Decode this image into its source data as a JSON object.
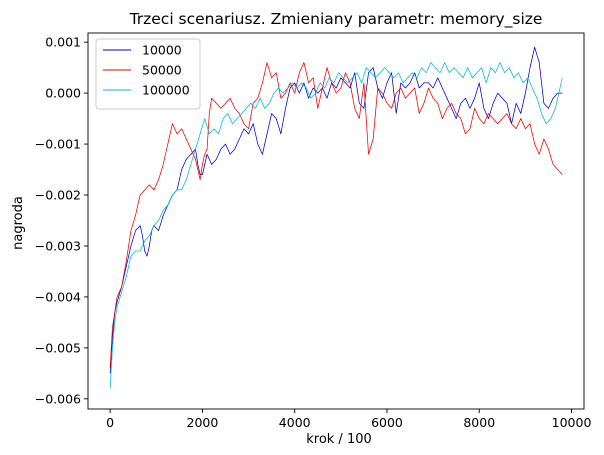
{
  "chart_data": {
    "type": "line",
    "title": "Trzeci scenariusz. Zmieniany parametr: memory_size",
    "xlabel": "krok / 100",
    "ylabel": "nagroda",
    "xlim": [
      -480,
      10270
    ],
    "ylim": [
      -0.0062,
      0.00118
    ],
    "xticks": [
      0,
      2000,
      4000,
      6000,
      8000,
      10000
    ],
    "xtick_labels": [
      "0",
      "2000",
      "4000",
      "6000",
      "8000",
      "10000"
    ],
    "yticks": [
      -0.006,
      -0.005,
      -0.004,
      -0.003,
      -0.002,
      -0.001,
      0.0,
      0.001
    ],
    "ytick_labels": [
      "−0.006",
      "−0.005",
      "−0.004",
      "−0.003",
      "−0.002",
      "−0.001",
      "0.000",
      "0.001"
    ],
    "grid": false,
    "legend_position": "top-left",
    "series": [
      {
        "name": "10000",
        "color": "#0000cc",
        "x": [
          0,
          50,
          100,
          150,
          250,
          350,
          450,
          550,
          650,
          700,
          750,
          800,
          850,
          900,
          950,
          1050,
          1150,
          1250,
          1350,
          1450,
          1550,
          1650,
          1750,
          1850,
          1900,
          1950,
          2000,
          2100,
          2200,
          2300,
          2400,
          2500,
          2600,
          2700,
          2800,
          2900,
          3000,
          3100,
          3200,
          3300,
          3400,
          3500,
          3600,
          3700,
          3800,
          3900,
          4000,
          4100,
          4200,
          4300,
          4400,
          4500,
          4600,
          4700,
          4800,
          4900,
          5000,
          5100,
          5200,
          5300,
          5400,
          5500,
          5600,
          5700,
          5800,
          5900,
          6000,
          6100,
          6200,
          6300,
          6400,
          6500,
          6600,
          6700,
          6800,
          6900,
          7000,
          7100,
          7200,
          7300,
          7400,
          7500,
          7600,
          7700,
          7800,
          7900,
          8000,
          8100,
          8200,
          8300,
          8400,
          8500,
          8600,
          8700,
          8800,
          8900,
          9000,
          9100,
          9200,
          9300,
          9400,
          9500,
          9600,
          9700,
          9800
        ],
        "y": [
          -0.0055,
          -0.0048,
          -0.0043,
          -0.0041,
          -0.0038,
          -0.0034,
          -0.003,
          -0.0027,
          -0.0026,
          -0.0028,
          -0.0031,
          -0.0032,
          -0.003,
          -0.0027,
          -0.0026,
          -0.0027,
          -0.0024,
          -0.0022,
          -0.002,
          -0.0019,
          -0.0015,
          -0.0013,
          -0.0012,
          -0.0011,
          -0.0014,
          -0.0016,
          -0.0016,
          -0.0012,
          -0.0014,
          -0.0013,
          -0.0011,
          -0.001,
          -0.0012,
          -0.0011,
          -0.0009,
          -0.0007,
          -0.0008,
          -0.0006,
          -0.001,
          -0.0012,
          -0.0008,
          -0.0004,
          -0.0005,
          -0.0008,
          -0.0003,
          0.0001,
          0.0002,
          0.0,
          0.0002,
          -0.0001,
          0.0001,
          0.0,
          0.0001,
          -0.0001,
          0.0002,
          0.0001,
          0.0003,
          0.0002,
          0.0001,
          0.0004,
          -0.0002,
          -0.0003,
          0.0004,
          0.0005,
          0.0001,
          -0.0001,
          0.0002,
          0.0004,
          -0.0004,
          0.0002,
          0.0001,
          0.0002,
          0.0004,
          0.0001,
          0.0002,
          0.0002,
          0.0001,
          0.0003,
          0.0001,
          -0.0001,
          -0.0003,
          -0.0005,
          -0.0002,
          -0.0001,
          -0.0003,
          -0.0001,
          0.0002,
          -0.0003,
          -0.0005,
          -0.0002,
          0.0,
          -0.0001,
          -0.0002,
          -0.0006,
          -0.0002,
          -0.0004,
          0.0,
          0.0005,
          0.0009,
          0.0006,
          -0.0002,
          -0.0003,
          -0.0001,
          0.0,
          0.0
        ]
      },
      {
        "name": "50000",
        "color": "#ee0000",
        "x": [
          0,
          50,
          100,
          150,
          250,
          350,
          450,
          550,
          650,
          750,
          850,
          950,
          1050,
          1150,
          1250,
          1350,
          1450,
          1550,
          1650,
          1750,
          1850,
          1900,
          1950,
          2000,
          2050,
          2100,
          2150,
          2200,
          2300,
          2400,
          2500,
          2600,
          2700,
          2800,
          2900,
          3000,
          3100,
          3200,
          3300,
          3400,
          3500,
          3600,
          3700,
          3800,
          3900,
          4000,
          4100,
          4200,
          4300,
          4400,
          4500,
          4600,
          4700,
          4800,
          4900,
          5000,
          5100,
          5200,
          5300,
          5400,
          5500,
          5600,
          5700,
          5800,
          5900,
          6000,
          6100,
          6200,
          6300,
          6400,
          6500,
          6600,
          6700,
          6800,
          6900,
          7000,
          7100,
          7200,
          7300,
          7400,
          7500,
          7600,
          7700,
          7800,
          7900,
          8000,
          8100,
          8200,
          8300,
          8400,
          8500,
          8600,
          8700,
          8800,
          8900,
          9000,
          9100,
          9200,
          9300,
          9400,
          9500,
          9600,
          9700,
          9800
        ],
        "y": [
          -0.0054,
          -0.0046,
          -0.0043,
          -0.004,
          -0.0038,
          -0.0033,
          -0.0027,
          -0.0024,
          -0.002,
          -0.0019,
          -0.0018,
          -0.0019,
          -0.0017,
          -0.0014,
          -0.001,
          -0.0006,
          -0.0008,
          -0.0007,
          -0.0009,
          -0.0011,
          -0.0013,
          -0.0015,
          -0.0017,
          -0.0014,
          -0.0012,
          -0.0011,
          -0.0004,
          -0.0001,
          -0.0002,
          -0.0003,
          -0.0002,
          -0.0001,
          -0.0003,
          -0.0004,
          -0.0006,
          -0.0007,
          -0.0002,
          -0.0001,
          0.0002,
          0.0006,
          0.0003,
          0.0004,
          -0.0001,
          0.0,
          0.0002,
          0.0,
          0.0004,
          0.0006,
          0.0002,
          0.0003,
          -0.0003,
          0.0001,
          0.0005,
          0.0002,
          0.0,
          0.0001,
          0.0004,
          0.0002,
          -0.0003,
          -0.0005,
          0.0002,
          -0.0012,
          -0.0009,
          0.0001,
          0.0,
          -0.0002,
          -0.0003,
          0.0,
          0.0001,
          -0.0001,
          0.0,
          0.0001,
          -0.0004,
          -0.0002,
          0.0001,
          -0.0001,
          -0.0002,
          -0.0005,
          -0.0003,
          -0.0002,
          -0.0004,
          -0.0005,
          -0.0008,
          -0.0007,
          -0.0003,
          -0.0005,
          -0.0006,
          -0.0004,
          -0.0005,
          -0.0006,
          -0.0005,
          -0.0004,
          -0.0006,
          -0.0007,
          -0.0005,
          -0.0007,
          -0.0006,
          -0.001,
          -0.0012,
          -0.0009,
          -0.0011,
          -0.0014,
          -0.0015,
          -0.0016
        ]
      },
      {
        "name": "100000",
        "color": "#00bbcc",
        "x": [
          0,
          50,
          100,
          150,
          250,
          350,
          450,
          550,
          650,
          750,
          850,
          950,
          1050,
          1150,
          1250,
          1350,
          1450,
          1550,
          1650,
          1750,
          1850,
          1950,
          2050,
          2150,
          2250,
          2350,
          2450,
          2550,
          2650,
          2750,
          2850,
          2950,
          3050,
          3150,
          3250,
          3350,
          3450,
          3550,
          3650,
          3750,
          3850,
          3950,
          4050,
          4150,
          4250,
          4350,
          4450,
          4550,
          4650,
          4750,
          4850,
          4950,
          5050,
          5150,
          5250,
          5350,
          5450,
          5550,
          5650,
          5750,
          5850,
          5950,
          6050,
          6150,
          6250,
          6350,
          6450,
          6550,
          6650,
          6750,
          6850,
          6950,
          7050,
          7150,
          7250,
          7350,
          7450,
          7550,
          7650,
          7750,
          7850,
          7950,
          8050,
          8150,
          8250,
          8350,
          8450,
          8550,
          8650,
          8750,
          8850,
          8950,
          9050,
          9150,
          9250,
          9350,
          9450,
          9550,
          9650,
          9800
        ],
        "y": [
          -0.0058,
          -0.005,
          -0.0045,
          -0.0042,
          -0.0039,
          -0.0036,
          -0.0032,
          -0.0031,
          -0.0031,
          -0.0029,
          -0.0028,
          -0.0026,
          -0.0025,
          -0.0023,
          -0.0022,
          -0.002,
          -0.0019,
          -0.0019,
          -0.0017,
          -0.0014,
          -0.0011,
          -0.0008,
          -0.0005,
          -0.0008,
          -0.0007,
          -0.0008,
          -0.0005,
          -0.0004,
          -0.0006,
          -0.0005,
          -0.0004,
          -0.0003,
          -0.0002,
          -0.0003,
          -0.0001,
          -0.0003,
          -0.0002,
          0.0,
          0.0001,
          0.0,
          0.0001,
          0.0002,
          0.0001,
          0.0002,
          0.0001,
          -0.0001,
          0.0,
          0.0002,
          0.0001,
          0.0003,
          0.0002,
          0.0004,
          0.0003,
          0.0002,
          0.0003,
          0.0004,
          0.0002,
          0.0005,
          0.0004,
          0.0003,
          0.0004,
          0.0005,
          0.0004,
          0.0003,
          0.0004,
          0.0002,
          0.0003,
          0.0004,
          0.0003,
          0.0005,
          0.0004,
          0.0006,
          0.0005,
          0.0004,
          0.0006,
          0.0004,
          0.0005,
          0.0004,
          0.0003,
          0.0005,
          0.0003,
          0.0004,
          0.0005,
          0.0002,
          0.0005,
          0.0004,
          0.0006,
          0.0004,
          0.0005,
          0.0003,
          0.0004,
          0.0002,
          0.0003,
          0.0001,
          -0.0001,
          -0.0004,
          -0.0006,
          -0.0005,
          -0.0003,
          0.0003
        ]
      }
    ]
  }
}
